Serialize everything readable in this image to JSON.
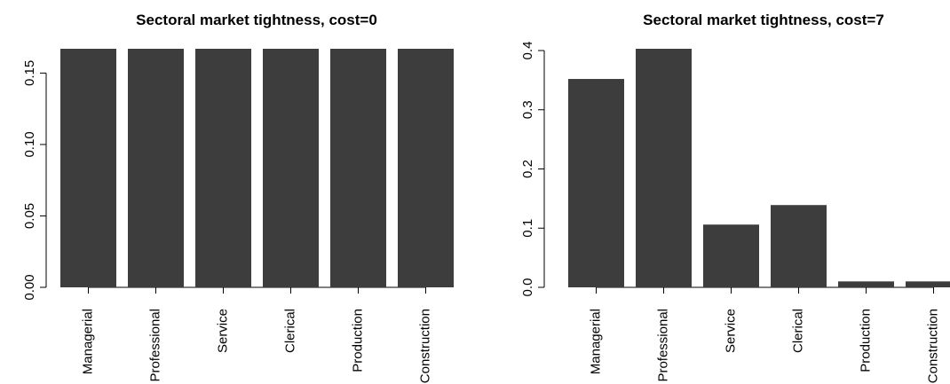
{
  "chart_data": [
    {
      "type": "bar",
      "title": "Sectoral market tightness, cost=0",
      "categories": [
        "Managerial",
        "Professional",
        "Service",
        "Clerical",
        "Production",
        "Construction"
      ],
      "values": [
        0.167,
        0.167,
        0.167,
        0.167,
        0.167,
        0.167
      ],
      "color": "#3d3d3d",
      "ylim": [
        0,
        0.167
      ],
      "yticks": [
        {
          "value": 0,
          "label": "0.00"
        },
        0.05,
        {
          "value": 0.1,
          "label": "0.10"
        },
        0.15
      ]
    },
    {
      "type": "bar",
      "title": "Sectoral market tightness, cost=7",
      "categories": [
        "Managerial",
        "Professional",
        "Service",
        "Clerical",
        "Production",
        "Construction"
      ],
      "values": [
        0.352,
        0.403,
        0.106,
        0.139,
        0.01,
        0.01
      ],
      "color": "#3d3d3d",
      "ylim": [
        0,
        0.403
      ],
      "yticks": [
        {
          "value": 0,
          "label": "0.0"
        },
        0.1,
        0.2,
        0.3,
        0.4
      ]
    }
  ]
}
